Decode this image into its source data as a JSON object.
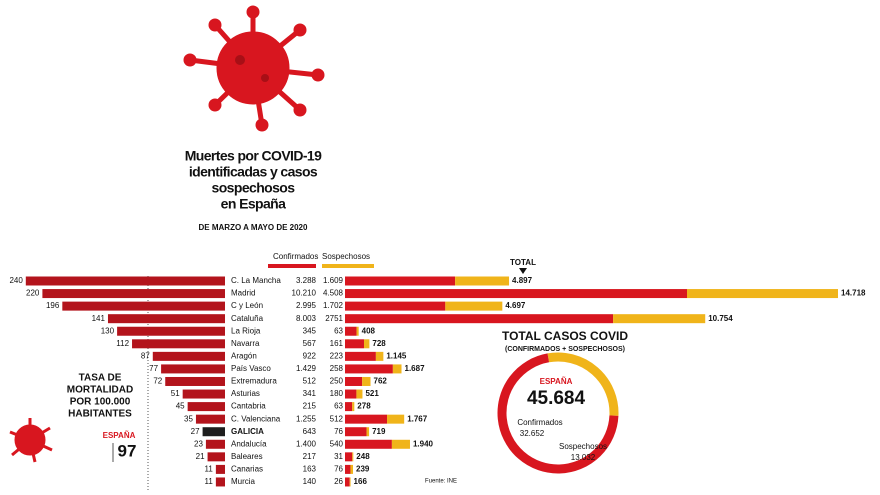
{
  "header": {
    "title_lines": [
      "Muertes por COVID-19",
      "identificadas y casos",
      "sospechosos",
      "en España"
    ],
    "subtitle": "DE MARZO A MAYO DE 2020"
  },
  "mortality_note": {
    "title_lines": [
      "TASA DE",
      "MORTALIDAD",
      "POR 100.000",
      "HABITANTES"
    ],
    "spain_label": "ESPAÑA",
    "spain_value": 97
  },
  "chart_data": {
    "type": "bar",
    "columns": {
      "confirmed": "Confirmados",
      "suspected": "Sospechosos",
      "total": "TOTAL"
    },
    "colors": {
      "mortality": "#b3141c",
      "highlight": "#1e1e1e",
      "confirmed": "#d8161f",
      "suspected": "#f0b41a"
    },
    "rows": [
      {
        "region": "C. La Mancha",
        "mortality": 240,
        "confirmed": 3288,
        "confirmed_label": "3.288",
        "suspected": 1609,
        "suspected_label": "1.609",
        "total": 4897,
        "total_label": "4.897"
      },
      {
        "region": "Madrid",
        "mortality": 220,
        "confirmed": 10210,
        "confirmed_label": "10.210",
        "suspected": 4508,
        "suspected_label": "4.508",
        "total": 14718,
        "total_label": "14.718"
      },
      {
        "region": "C y León",
        "mortality": 196,
        "confirmed": 2995,
        "confirmed_label": "2.995",
        "suspected": 1702,
        "suspected_label": "1.702",
        "total": 4697,
        "total_label": "4.697"
      },
      {
        "region": "Cataluña",
        "mortality": 141,
        "confirmed": 8003,
        "confirmed_label": "8.003",
        "suspected": 2751,
        "total": 10754,
        "total_label": "10.754"
      },
      {
        "region": "La Rioja",
        "mortality": 130,
        "confirmed": 345,
        "suspected": 63,
        "total": 408
      },
      {
        "region": "Navarra",
        "mortality": 112,
        "confirmed": 567,
        "suspected": 161,
        "total": 728
      },
      {
        "region": "Aragón",
        "mortality": 87,
        "confirmed": 922,
        "suspected": 223,
        "total": 1145,
        "total_label": "1.145"
      },
      {
        "region": "País Vasco",
        "mortality": 77,
        "confirmed": 1429,
        "confirmed_label": "1.429",
        "suspected": 258,
        "total": 1687,
        "total_label": "1.687"
      },
      {
        "region": "Extremadura",
        "mortality": 72,
        "confirmed": 512,
        "suspected": 250,
        "total": 762
      },
      {
        "region": "Asturias",
        "mortality": 51,
        "confirmed": 341,
        "suspected": 180,
        "total": 521
      },
      {
        "region": "Cantabria",
        "mortality": 45,
        "confirmed": 215,
        "suspected": 63,
        "total": 278
      },
      {
        "region": "C. Valenciana",
        "mortality": 35,
        "confirmed": 1255,
        "confirmed_label": "1.255",
        "suspected": 512,
        "total": 1767,
        "total_label": "1.767"
      },
      {
        "region": "GALICIA",
        "mortality": 27,
        "confirmed": 643,
        "suspected": 76,
        "total": 719,
        "highlight": true
      },
      {
        "region": "Andalucía",
        "mortality": 23,
        "confirmed": 1400,
        "confirmed_label": "1.400",
        "suspected": 540,
        "total": 1940,
        "total_label": "1.940"
      },
      {
        "region": "Baleares",
        "mortality": 21,
        "confirmed": 217,
        "suspected": 31,
        "total": 248
      },
      {
        "region": "Canarias",
        "mortality": 11,
        "confirmed": 163,
        "suspected": 76,
        "total": 239
      },
      {
        "region": "Murcia",
        "mortality": 11,
        "confirmed": 140,
        "suspected": 26,
        "total": 166
      }
    ],
    "donut": {
      "title": "TOTAL CASOS COVID",
      "note": "(CONFIRMADOS + SOSPECHOSOS)",
      "label": "ESPAÑA",
      "total": 45684,
      "total_label": "45.684",
      "confirmed_title": "Confirmados",
      "confirmed": 32652,
      "confirmed_label": "32.652",
      "suspected_title": "Sospechosos",
      "suspected": 13032,
      "suspected_label": "13.032"
    },
    "source": "Fuente: INE"
  }
}
